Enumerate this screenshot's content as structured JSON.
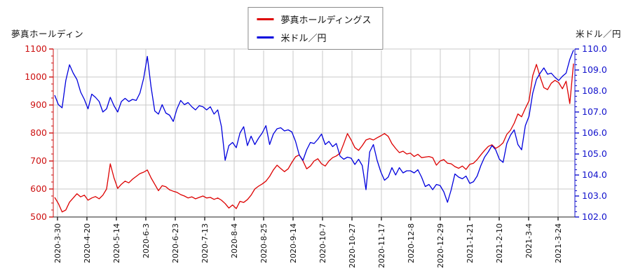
{
  "titles": {
    "left": "夢真ホールディン",
    "right": "米ドル／円"
  },
  "legend": [
    {
      "label": "夢真ホールディングス",
      "color": "#dd0000"
    },
    {
      "label": "米ドル／円",
      "color": "#0000dd"
    }
  ],
  "chart_data": {
    "type": "line",
    "title": "",
    "grid": true,
    "legend_position": "top-center",
    "x_tick_labels": [
      "2020-3-30",
      "2020-4-20",
      "2020-5-14",
      "2020-6-3",
      "2020-6-23",
      "2020-7-13",
      "2020-8-4",
      "2020-8-25",
      "2020-9-14",
      "2020-10-7",
      "2020-10-27",
      "2020-11-17",
      "2020-12-8",
      "2020-12-29",
      "2021-1-21",
      "2021-2-10",
      "2021-3-4",
      "2021-3-24"
    ],
    "left_axis": {
      "label": "夢真ホールディン",
      "min": 500,
      "max": 1100,
      "color": "#cc1111",
      "tick_labels": [
        "1100",
        "1000",
        "900",
        "800",
        "700",
        "600",
        "500"
      ],
      "tick_values": [
        1100,
        1000,
        900,
        800,
        700,
        600,
        500
      ],
      "minor_step": 25
    },
    "right_axis": {
      "label": "米ドル／円",
      "min": 102,
      "max": 110,
      "color": "#1111cc",
      "tick_labels": [
        "110.0",
        "109.0",
        "108.0",
        "107.0",
        "106.0",
        "105.0",
        "104.0",
        "103.0",
        "102.0"
      ],
      "tick_values": [
        110,
        109,
        108,
        107,
        106,
        105,
        104,
        103,
        102
      ],
      "minor_step": 0.25
    },
    "series": [
      {
        "name": "夢真ホールディングス",
        "axis": "left",
        "color": "#dd0000",
        "values": [
          570,
          548,
          518,
          525,
          553,
          568,
          583,
          572,
          578,
          560,
          568,
          573,
          565,
          578,
          600,
          690,
          640,
          602,
          617,
          628,
          622,
          635,
          645,
          655,
          660,
          668,
          640,
          617,
          594,
          612,
          608,
          597,
          592,
          588,
          580,
          575,
          568,
          572,
          565,
          570,
          575,
          568,
          570,
          563,
          568,
          560,
          548,
          532,
          543,
          530,
          556,
          552,
          562,
          578,
          600,
          610,
          618,
          628,
          645,
          668,
          685,
          673,
          662,
          672,
          695,
          715,
          722,
          700,
          672,
          682,
          700,
          708,
          690,
          682,
          700,
          712,
          718,
          728,
          762,
          798,
          775,
          748,
          738,
          755,
          775,
          780,
          775,
          783,
          790,
          798,
          788,
          762,
          745,
          730,
          735,
          725,
          728,
          716,
          724,
          712,
          714,
          716,
          712,
          685,
          700,
          705,
          692,
          690,
          680,
          674,
          682,
          670,
          688,
          692,
          705,
          722,
          738,
          752,
          758,
          745,
          753,
          765,
          795,
          810,
          835,
          868,
          858,
          888,
          915,
          1005,
          1045,
          1000,
          962,
          955,
          978,
          988,
          980,
          958,
          985,
          905,
          1048
        ]
      },
      {
        "name": "米ドル／円",
        "axis": "right",
        "color": "#0000dd",
        "values": [
          107.8,
          107.35,
          107.2,
          108.5,
          109.25,
          108.85,
          108.55,
          107.95,
          107.6,
          107.15,
          107.85,
          107.7,
          107.5,
          107.0,
          107.15,
          107.7,
          107.3,
          107.0,
          107.5,
          107.65,
          107.5,
          107.6,
          107.55,
          107.9,
          108.6,
          109.65,
          108.2,
          107.05,
          106.9,
          107.35,
          106.95,
          106.85,
          106.55,
          107.15,
          107.55,
          107.35,
          107.45,
          107.25,
          107.1,
          107.3,
          107.25,
          107.1,
          107.25,
          106.9,
          107.1,
          106.3,
          104.7,
          105.4,
          105.55,
          105.3,
          106.0,
          106.3,
          105.4,
          105.85,
          105.45,
          105.75,
          106.0,
          106.35,
          105.45,
          105.95,
          106.2,
          106.25,
          106.1,
          106.15,
          106.05,
          105.6,
          104.95,
          104.7,
          105.2,
          105.55,
          105.5,
          105.7,
          105.95,
          105.45,
          105.6,
          105.35,
          105.5,
          104.9,
          104.75,
          104.85,
          104.8,
          104.5,
          104.75,
          104.45,
          103.3,
          105.1,
          105.45,
          104.7,
          104.15,
          103.75,
          103.9,
          104.35,
          104.0,
          104.35,
          104.1,
          104.2,
          104.2,
          104.1,
          104.25,
          103.9,
          103.45,
          103.55,
          103.3,
          103.55,
          103.5,
          103.2,
          102.7,
          103.3,
          104.05,
          103.9,
          103.82,
          103.95,
          103.6,
          103.68,
          103.95,
          104.45,
          104.85,
          105.1,
          105.4,
          105.2,
          104.75,
          104.6,
          105.5,
          105.9,
          106.15,
          105.45,
          105.2,
          106.35,
          106.8,
          107.9,
          108.55,
          108.85,
          109.1,
          108.8,
          108.85,
          108.65,
          108.5,
          108.7,
          108.85,
          109.5,
          109.95
        ]
      }
    ]
  }
}
